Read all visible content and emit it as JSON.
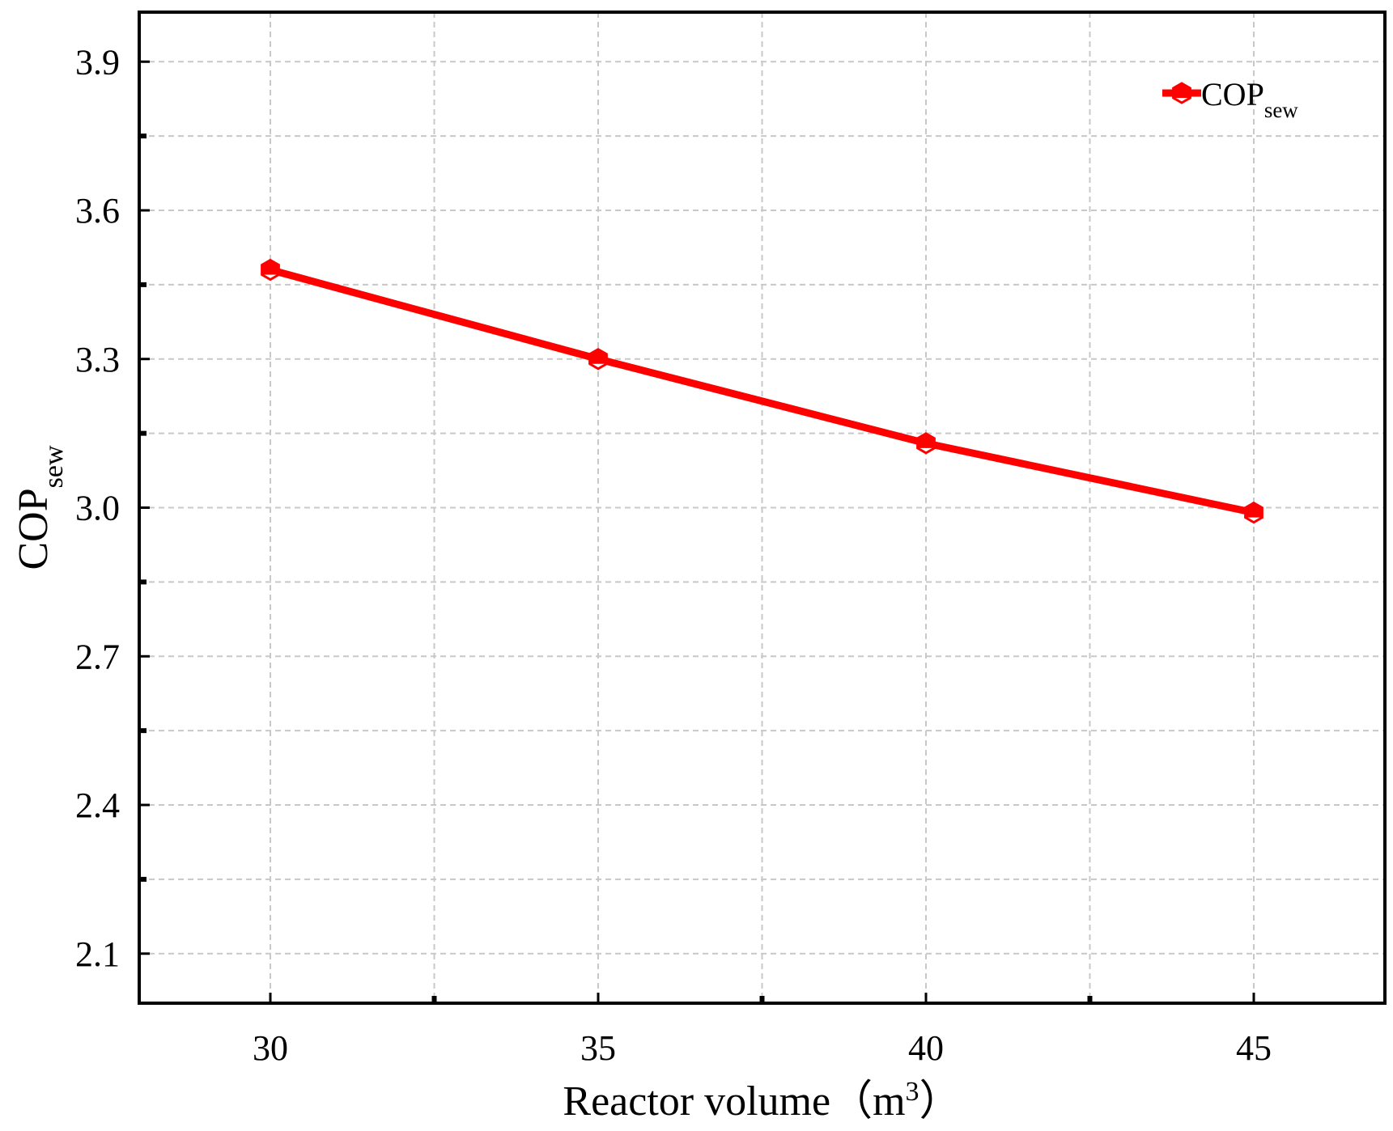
{
  "chart_data": {
    "type": "line",
    "x": [
      30,
      35,
      40,
      45
    ],
    "series": [
      {
        "name": "COPsew",
        "name_main": "COP",
        "name_sub": "sew",
        "values": [
          3.48,
          3.3,
          3.13,
          2.99
        ],
        "color": "#ff0000",
        "marker": "hexagon"
      }
    ],
    "xlabel": {
      "main": "Reactor volume（m",
      "sup": "3",
      "close": "）"
    },
    "ylabel": {
      "main": "COP",
      "sub": "sew"
    },
    "xlim": [
      28,
      47
    ],
    "ylim": [
      2.0,
      4.0
    ],
    "xticks": [
      30,
      35,
      40,
      45
    ],
    "xtick_labels": [
      "30",
      "35",
      "40",
      "45"
    ],
    "yticks": [
      2.1,
      2.4,
      2.7,
      3.0,
      3.3,
      3.6,
      3.9
    ],
    "ytick_labels": [
      "2.1",
      "2.4",
      "2.7",
      "3.0",
      "3.3",
      "3.6",
      "3.9"
    ],
    "grid": true,
    "legend_position": "top-right"
  }
}
